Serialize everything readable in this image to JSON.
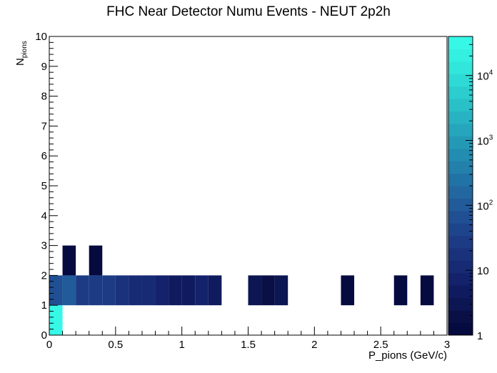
{
  "chart_data": {
    "type": "heatmap",
    "title": "FHC Near Detector Numu Events - NEUT 2p2h",
    "xlabel": "P_pions (GeV/c)",
    "ylabel_main": "N",
    "ylabel_sub": "pions",
    "xlim": [
      0,
      3
    ],
    "ylim": [
      0,
      10
    ],
    "x_ticks": [
      "0",
      "0.5",
      "1",
      "1.5",
      "2",
      "2.5",
      "3"
    ],
    "y_ticks": [
      "0",
      "1",
      "2",
      "3",
      "4",
      "5",
      "6",
      "7",
      "8",
      "9",
      "10"
    ],
    "color_scale": "log",
    "color_range": [
      1,
      40000
    ],
    "colorbar_ticks": [
      "1",
      "10",
      "10^2",
      "10^3",
      "10^4"
    ],
    "cells": [
      {
        "x": [
          0.0,
          0.1
        ],
        "y": [
          0,
          1
        ],
        "value": 30000
      },
      {
        "x": [
          0.0,
          0.1
        ],
        "y": [
          1,
          2
        ],
        "value": 80
      },
      {
        "x": [
          0.1,
          0.2
        ],
        "y": [
          1,
          2
        ],
        "value": 120
      },
      {
        "x": [
          0.2,
          0.3
        ],
        "y": [
          1,
          2
        ],
        "value": 30
      },
      {
        "x": [
          0.3,
          0.4
        ],
        "y": [
          1,
          2
        ],
        "value": 22
      },
      {
        "x": [
          0.4,
          0.5
        ],
        "y": [
          1,
          2
        ],
        "value": 22
      },
      {
        "x": [
          0.5,
          0.6
        ],
        "y": [
          1,
          2
        ],
        "value": 20
      },
      {
        "x": [
          0.6,
          0.7
        ],
        "y": [
          1,
          2
        ],
        "value": 12
      },
      {
        "x": [
          0.7,
          0.8
        ],
        "y": [
          1,
          2
        ],
        "value": 10
      },
      {
        "x": [
          0.8,
          0.9
        ],
        "y": [
          1,
          2
        ],
        "value": 9
      },
      {
        "x": [
          0.9,
          1.0
        ],
        "y": [
          1,
          2
        ],
        "value": 4
      },
      {
        "x": [
          1.0,
          1.1
        ],
        "y": [
          1,
          2
        ],
        "value": 5
      },
      {
        "x": [
          1.1,
          1.2
        ],
        "y": [
          1,
          2
        ],
        "value": 6
      },
      {
        "x": [
          1.2,
          1.3
        ],
        "y": [
          1,
          2
        ],
        "value": 4
      },
      {
        "x": [
          1.5,
          1.6
        ],
        "y": [
          1,
          2
        ],
        "value": 3
      },
      {
        "x": [
          1.6,
          1.7
        ],
        "y": [
          1,
          2
        ],
        "value": 2
      },
      {
        "x": [
          1.7,
          1.8
        ],
        "y": [
          1,
          2
        ],
        "value": 3
      },
      {
        "x": [
          2.2,
          2.3
        ],
        "y": [
          1,
          2
        ],
        "value": 1
      },
      {
        "x": [
          2.6,
          2.7
        ],
        "y": [
          1,
          2
        ],
        "value": 1
      },
      {
        "x": [
          2.8,
          2.9
        ],
        "y": [
          1,
          2
        ],
        "value": 1
      },
      {
        "x": [
          0.1,
          0.2
        ],
        "y": [
          2,
          3
        ],
        "value": 1
      },
      {
        "x": [
          0.3,
          0.4
        ],
        "y": [
          2,
          3
        ],
        "value": 1
      }
    ],
    "palette": [
      "#050a3f",
      "#0a1046",
      "#0c1652",
      "#0f1b5e",
      "#13226a",
      "#172a74",
      "#1a327c",
      "#1c3b84",
      "#1e458c",
      "#205093",
      "#215b99",
      "#22679f",
      "#2273a5",
      "#2380ab",
      "#238cb1",
      "#2499b6",
      "#25a6bc",
      "#27b3c2",
      "#29c0c8",
      "#2bcdce",
      "#2edad5",
      "#31e6db",
      "#34f0e1",
      "#37f8e7"
    ]
  }
}
